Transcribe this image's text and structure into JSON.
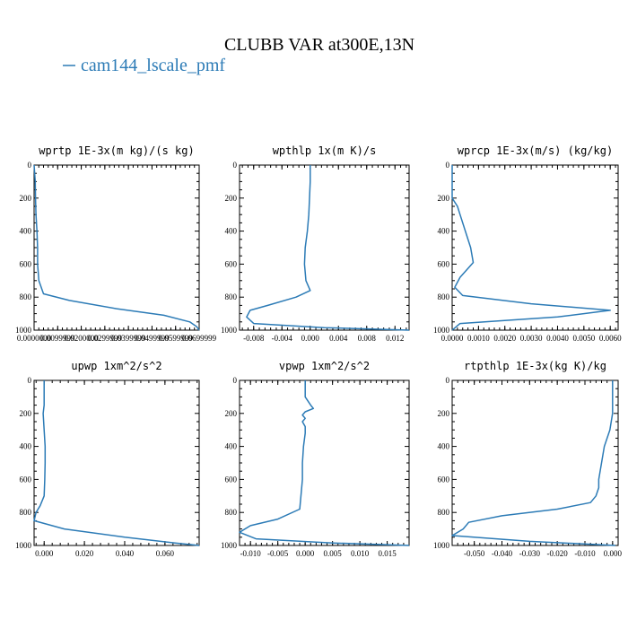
{
  "figure": {
    "title": "CLUBB VAR at300E,13N",
    "legend_label": "cam144_lscale_pmf",
    "series_color": "#2c7bb6"
  },
  "chart_data": [
    {
      "type": "line",
      "title": "wprtp  1E-3x(m kg)/(s kg)",
      "xlim": [
        0.0,
        0.07
      ],
      "ylim": [
        1000,
        0
      ],
      "yticks": [
        0,
        200,
        400,
        600,
        800,
        1000
      ],
      "xticks": [
        0.0,
        0.01,
        0.02,
        0.03,
        0.04,
        0.05,
        0.06,
        0.07
      ],
      "xtick_labels": [
        "0.0000000",
        "0.0099999",
        "0.0200000",
        "0.0299999",
        "0.0399999",
        "0.0499999",
        "0.0599999",
        "0.0699999"
      ],
      "series": [
        {
          "x": [
            0.0,
            0.0005,
            0.0006,
            0.0008,
            0.0012,
            0.0015,
            0.0015,
            0.002,
            0.004,
            0.015,
            0.035,
            0.055,
            0.066,
            0.069,
            0.07
          ],
          "y": [
            0,
            100,
            200,
            300,
            400,
            500,
            600,
            700,
            780,
            820,
            870,
            910,
            950,
            980,
            1000
          ]
        }
      ]
    },
    {
      "type": "line",
      "title": "wpthlp  1x(m K)/s",
      "xlim": [
        -0.01,
        0.014
      ],
      "ylim": [
        1000,
        0
      ],
      "yticks": [
        0,
        200,
        400,
        600,
        800,
        1000
      ],
      "xticks": [
        -0.008,
        -0.004,
        0.0,
        0.004,
        0.008,
        0.012
      ],
      "xtick_labels": [
        "-0.008",
        "-0.004",
        "0.000",
        "0.004",
        "0.008",
        "0.012"
      ],
      "series": [
        {
          "x": [
            0.0,
            0.0,
            -0.0001,
            -0.0002,
            -0.0004,
            -0.0007,
            -0.0008,
            -0.0006,
            0.0,
            -0.002,
            -0.006,
            -0.0085,
            -0.009,
            -0.008,
            0.002,
            0.014
          ],
          "y": [
            0,
            100,
            200,
            300,
            400,
            500,
            600,
            700,
            760,
            800,
            850,
            880,
            920,
            960,
            985,
            1000
          ]
        }
      ]
    },
    {
      "type": "line",
      "title": "wprcp  1E-3x(m/s) (kg/kg)",
      "xlim": [
        0.0,
        0.0063
      ],
      "ylim": [
        1000,
        0
      ],
      "yticks": [
        0,
        200,
        400,
        600,
        800,
        1000
      ],
      "xticks": [
        0.0,
        0.001,
        0.002,
        0.003,
        0.004,
        0.005,
        0.006
      ],
      "xtick_labels": [
        "0.0000",
        "0.0010",
        "0.0020",
        "0.0030",
        "0.0040",
        "0.0050",
        "0.0060"
      ],
      "series": [
        {
          "x": [
            0.0,
            0.0,
            0.0,
            0.0002,
            0.0003,
            0.0005,
            0.0007,
            0.0008,
            0.0003,
            0.0001,
            0.0004,
            0.003,
            0.006,
            0.004,
            0.0003,
            0.0
          ],
          "y": [
            0,
            100,
            200,
            250,
            300,
            400,
            500,
            590,
            680,
            740,
            790,
            840,
            880,
            920,
            960,
            1000
          ]
        }
      ]
    },
    {
      "type": "line",
      "title": "upwp  1xm^2/s^2",
      "xlim": [
        -0.005,
        0.077
      ],
      "ylim": [
        1000,
        0
      ],
      "yticks": [
        0,
        200,
        400,
        600,
        800,
        1000
      ],
      "xticks": [
        0.0,
        0.02,
        0.04,
        0.06
      ],
      "xtick_labels": [
        "0.000",
        "0.020",
        "0.040",
        "0.060"
      ],
      "series": [
        {
          "x": [
            0.0,
            0.0,
            -0.0005,
            0.0,
            0.0005,
            0.0005,
            0.0003,
            0.0,
            -0.002,
            -0.004,
            -0.005,
            0.01,
            0.04,
            0.065,
            0.077
          ],
          "y": [
            0,
            150,
            200,
            300,
            400,
            500,
            600,
            700,
            760,
            800,
            850,
            900,
            950,
            985,
            1000
          ]
        }
      ]
    },
    {
      "type": "line",
      "title": "vpwp  1xm^2/s^2",
      "xlim": [
        -0.012,
        0.019
      ],
      "ylim": [
        1000,
        0
      ],
      "yticks": [
        0,
        200,
        400,
        600,
        800,
        1000
      ],
      "xticks": [
        -0.01,
        -0.005,
        0.0,
        0.005,
        0.01,
        0.015
      ],
      "xtick_labels": [
        "-0.010",
        "-0.005",
        "0.000",
        "0.005",
        "0.010",
        "0.015"
      ],
      "series": [
        {
          "x": [
            0.0,
            0.0,
            0.001,
            0.0015,
            0.0,
            -0.0005,
            0.0,
            -0.0005,
            0.0,
            0.0,
            -0.0003,
            -0.0005,
            -0.0005,
            -0.001,
            -0.005,
            -0.01,
            -0.012,
            -0.009,
            0.005,
            0.019
          ],
          "y": [
            0,
            100,
            150,
            170,
            190,
            210,
            230,
            250,
            280,
            320,
            400,
            500,
            600,
            780,
            840,
            880,
            920,
            960,
            985,
            1000
          ]
        }
      ]
    },
    {
      "type": "line",
      "title": "rtpthlp  1E-3x(kg K)/kg",
      "xlim": [
        -0.058,
        0.002
      ],
      "ylim": [
        1000,
        0
      ],
      "yticks": [
        0,
        200,
        400,
        600,
        800,
        1000
      ],
      "xticks": [
        -0.05,
        -0.04,
        -0.03,
        -0.02,
        -0.01,
        0.0
      ],
      "xtick_labels": [
        "-0.050",
        "-0.040",
        "-0.030",
        "-0.020",
        "-0.010",
        "0.000"
      ],
      "series": [
        {
          "x": [
            0.0,
            0.0,
            -0.001,
            -0.003,
            -0.004,
            -0.005,
            -0.005,
            -0.006,
            -0.008,
            -0.02,
            -0.04,
            -0.052,
            -0.054,
            -0.058,
            -0.03,
            0.001
          ],
          "y": [
            0,
            200,
            300,
            400,
            500,
            600,
            650,
            700,
            740,
            780,
            820,
            860,
            900,
            940,
            975,
            1000
          ]
        }
      ]
    }
  ]
}
